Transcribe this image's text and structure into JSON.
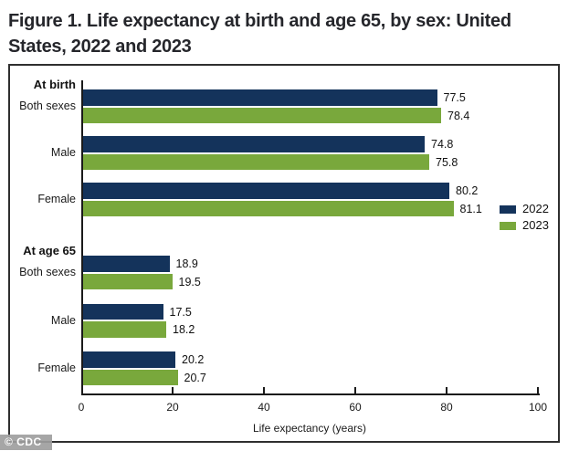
{
  "title": {
    "line1": "Figure 1. Life expectancy at birth and age 65, by sex: United",
    "line2": "States, 2022 and 2023"
  },
  "watermark": "© CDC",
  "colors": {
    "bar_2022": "#14335b",
    "bar_2023": "#79a83c"
  },
  "chart_data": {
    "type": "bar",
    "orientation": "horizontal",
    "title": "Figure 1. Life expectancy at birth and age 65, by sex: United States, 2022 and 2023",
    "xlabel": "Life expectancy (years)",
    "xlim": [
      0,
      100
    ],
    "xticks": [
      0,
      20,
      40,
      60,
      80,
      100
    ],
    "grid": false,
    "legend_position": "right-middle",
    "legend": [
      {
        "label": "2022",
        "color": "#14335b"
      },
      {
        "label": "2023",
        "color": "#79a83c"
      }
    ],
    "groups": [
      {
        "group_label": "At birth",
        "rows": [
          {
            "label": "Both sexes",
            "values": {
              "2022": 77.5,
              "2023": 78.4
            }
          },
          {
            "label": "Male",
            "values": {
              "2022": 74.8,
              "2023": 75.8
            }
          },
          {
            "label": "Female",
            "values": {
              "2022": 80.2,
              "2023": 81.1
            }
          }
        ]
      },
      {
        "group_label": "At age 65",
        "rows": [
          {
            "label": "Both sexes",
            "values": {
              "2022": 18.9,
              "2023": 19.5
            }
          },
          {
            "label": "Male",
            "values": {
              "2022": 17.5,
              "2023": 18.2
            }
          },
          {
            "label": "Female",
            "values": {
              "2022": 20.2,
              "2023": 20.7
            }
          }
        ]
      }
    ]
  }
}
